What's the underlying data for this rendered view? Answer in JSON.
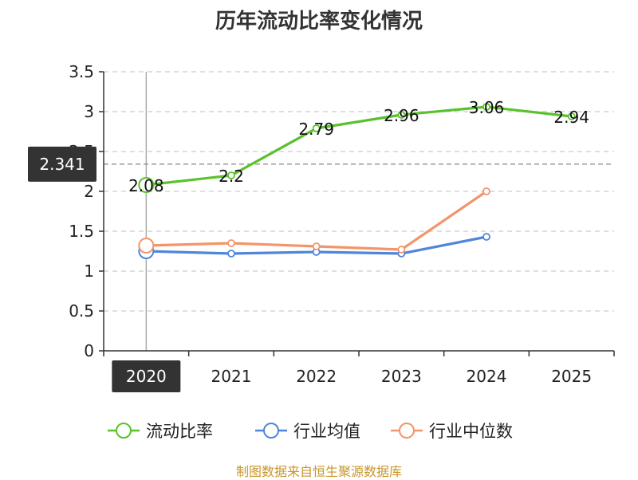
{
  "chart_data": {
    "type": "line",
    "title": "历年流动比率变化情况",
    "categories": [
      "2020",
      "2021",
      "2022",
      "2023",
      "2024",
      "2025"
    ],
    "ylim": [
      0,
      3.5
    ],
    "yticks": [
      "0",
      "0.5",
      "1",
      "1.5",
      "2",
      "2.5",
      "3",
      "3.5"
    ],
    "ytick_values": [
      0,
      0.5,
      1,
      1.5,
      2,
      2.5,
      3,
      3.5
    ],
    "grid": true,
    "legend_position": "bottom",
    "series": [
      {
        "name": "流动比率",
        "color": "#5ac12d",
        "values": [
          2.08,
          2.2,
          2.79,
          2.96,
          3.06,
          2.94
        ],
        "labels": [
          "2.08",
          "2.2",
          "2.79",
          "2.96",
          "3.06",
          "2.94"
        ]
      },
      {
        "name": "行业均值",
        "color": "#4f86d9",
        "values": [
          1.25,
          1.22,
          1.24,
          1.22,
          1.43,
          null
        ]
      },
      {
        "name": "行业中位数",
        "color": "#f3956a",
        "values": [
          1.32,
          1.35,
          1.31,
          1.27,
          2.0,
          null
        ]
      }
    ],
    "hover": {
      "category": "2020",
      "y_value": 2.341,
      "y_label": "2.341"
    }
  },
  "source": "制图数据来自恒生聚源数据库"
}
